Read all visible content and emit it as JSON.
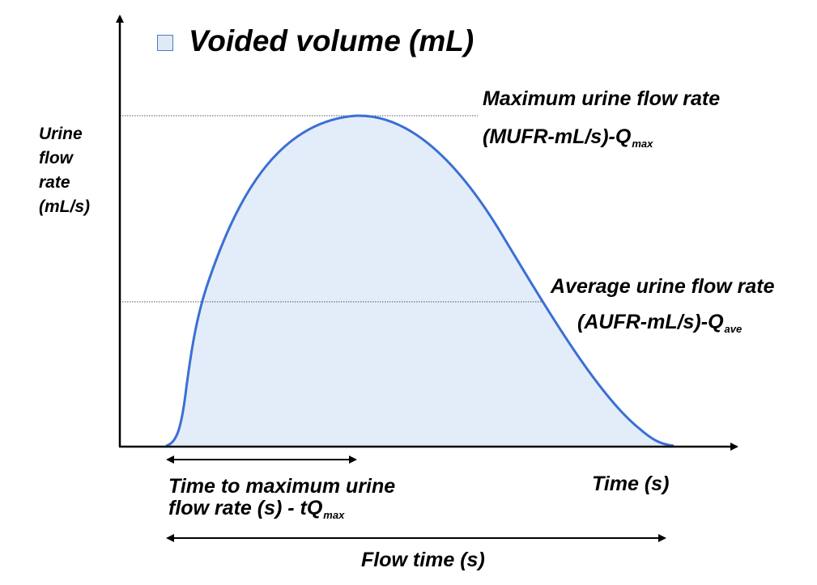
{
  "legend": {
    "label": "Voided volume (mL)",
    "swatch_color": "#dfeaf7"
  },
  "y_axis_label": [
    "Urine",
    "flow",
    "rate",
    "(mL/s)"
  ],
  "x_axis_label": "Time (s)",
  "max_flow": {
    "line1": "Maximum  urine flow rate",
    "line2": "(MUFR-mL/s)-Q",
    "subscript": "max"
  },
  "avg_flow": {
    "line1": "Average urine flow rate",
    "line2": "(AUFR-mL/s)-Q",
    "subscript": "ave"
  },
  "time_to_max": {
    "line1": "Time to maximum urine",
    "line2": "flow rate (s) - tQ",
    "subscript": "max"
  },
  "flow_time": {
    "label": "Flow time (s)"
  },
  "colors": {
    "curve": "#3b6fd4",
    "fill": "#e3edf9",
    "axis": "#000000",
    "reference_line": "#555555"
  }
}
